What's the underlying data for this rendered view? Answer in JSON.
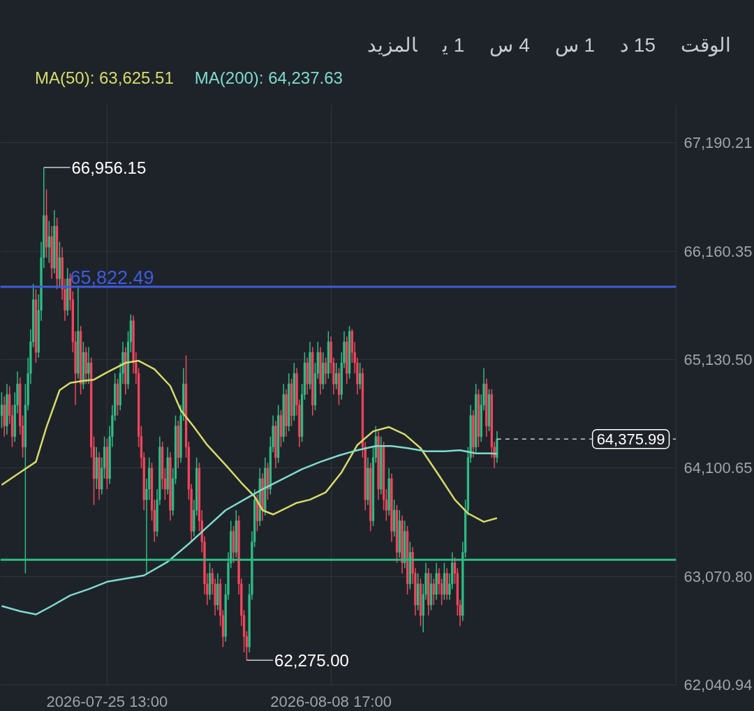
{
  "chart_data": {
    "type": "candlestick",
    "annotations": [
      "الوقت",
      "15 د",
      "1 س",
      "4 س",
      "1 ي",
      "المزيد",
      {
        "text": "66,956.15",
        "x": "2026-07-21T13:00",
        "y": 66956.15
      },
      {
        "text": "62,275.00",
        "x": "2026-08-03T09:00",
        "y": 62275
      }
    ],
    "x": [
      "2026-07-18T21:00",
      "2026-07-19T01:00",
      "2026-07-19T05:00",
      "2026-07-19T09:00",
      "2026-07-19T13:00",
      "2026-07-19T17:00",
      "2026-07-19T21:00",
      "2026-07-20T01:00",
      "2026-07-20T05:00",
      "2026-07-20T09:00",
      "2026-07-20T13:00",
      "2026-07-20T17:00",
      "2026-07-20T21:00",
      "2026-07-21T01:00",
      "2026-07-21T05:00",
      "2026-07-21T09:00",
      "2026-07-21T13:00",
      "2026-07-21T17:00",
      "2026-07-21T21:00",
      "2026-07-22T01:00",
      "2026-07-22T05:00",
      "2026-07-22T09:00",
      "2026-07-22T13:00",
      "2026-07-22T17:00",
      "2026-07-22T21:00",
      "2026-07-23T01:00",
      "2026-07-23T05:00",
      "2026-07-23T09:00",
      "2026-07-23T13:00",
      "2026-07-23T17:00",
      "2026-07-23T21:00",
      "2026-07-24T01:00",
      "2026-07-24T05:00",
      "2026-07-24T09:00",
      "2026-07-24T13:00",
      "2026-07-24T17:00",
      "2026-07-24T21:00",
      "2026-07-25T01:00",
      "2026-07-25T05:00",
      "2026-07-25T09:00",
      "2026-07-25T13:00",
      "2026-07-25T17:00",
      "2026-07-25T21:00",
      "2026-07-26T01:00",
      "2026-07-26T05:00",
      "2026-07-26T09:00",
      "2026-07-26T13:00",
      "2026-07-26T17:00",
      "2026-07-26T21:00",
      "2026-07-27T01:00",
      "2026-07-27T05:00",
      "2026-07-27T09:00",
      "2026-07-27T13:00",
      "2026-07-27T17:00",
      "2026-07-27T21:00",
      "2026-07-28T01:00",
      "2026-07-28T05:00",
      "2026-07-28T09:00",
      "2026-07-28T13:00",
      "2026-07-28T17:00",
      "2026-07-28T21:00",
      "2026-07-29T01:00",
      "2026-07-29T05:00",
      "2026-07-29T09:00",
      "2026-07-29T13:00",
      "2026-07-29T17:00",
      "2026-07-29T21:00",
      "2026-07-30T01:00",
      "2026-07-30T05:00",
      "2026-07-30T09:00",
      "2026-07-30T13:00",
      "2026-07-30T17:00",
      "2026-07-30T21:00",
      "2026-07-31T01:00",
      "2026-07-31T05:00",
      "2026-07-31T09:00",
      "2026-07-31T13:00",
      "2026-07-31T17:00",
      "2026-07-31T21:00",
      "2026-08-01T01:00",
      "2026-08-01T05:00",
      "2026-08-01T09:00",
      "2026-08-01T13:00",
      "2026-08-01T17:00",
      "2026-08-01T21:00",
      "2026-08-02T01:00",
      "2026-08-02T05:00",
      "2026-08-02T09:00",
      "2026-08-02T13:00",
      "2026-08-02T17:00",
      "2026-08-02T21:00",
      "2026-08-03T01:00",
      "2026-08-03T05:00",
      "2026-08-03T09:00",
      "2026-08-03T13:00",
      "2026-08-03T17:00",
      "2026-08-03T21:00",
      "2026-08-04T01:00",
      "2026-08-04T05:00",
      "2026-08-04T09:00",
      "2026-08-04T13:00",
      "2026-08-04T17:00",
      "2026-08-04T21:00",
      "2026-08-05T01:00",
      "2026-08-05T05:00",
      "2026-08-05T09:00",
      "2026-08-05T13:00",
      "2026-08-05T17:00",
      "2026-08-05T21:00",
      "2026-08-06T01:00",
      "2026-08-06T05:00",
      "2026-08-06T09:00",
      "2026-08-06T13:00",
      "2026-08-06T17:00",
      "2026-08-06T21:00",
      "2026-08-07T01:00",
      "2026-08-07T05:00",
      "2026-08-07T09:00",
      "2026-08-07T13:00",
      "2026-08-07T17:00",
      "2026-08-07T21:00",
      "2026-08-08T01:00",
      "2026-08-08T05:00",
      "2026-08-08T09:00",
      "2026-08-08T13:00",
      "2026-08-08T17:00",
      "2026-08-08T21:00",
      "2026-08-09T01:00",
      "2026-08-09T05:00",
      "2026-08-09T09:00",
      "2026-08-09T13:00",
      "2026-08-09T17:00",
      "2026-08-09T21:00",
      "2026-08-10T01:00",
      "2026-08-10T05:00",
      "2026-08-10T09:00",
      "2026-08-10T13:00",
      "2026-08-10T17:00",
      "2026-08-10T21:00",
      "2026-08-11T01:00",
      "2026-08-11T05:00",
      "2026-08-11T09:00",
      "2026-08-11T13:00",
      "2026-08-11T17:00",
      "2026-08-11T21:00",
      "2026-08-12T01:00",
      "2026-08-12T05:00",
      "2026-08-12T09:00",
      "2026-08-12T13:00",
      "2026-08-12T17:00",
      "2026-08-12T21:00",
      "2026-08-13T01:00",
      "2026-08-13T05:00",
      "2026-08-13T09:00",
      "2026-08-13T13:00",
      "2026-08-13T17:00",
      "2026-08-13T21:00",
      "2026-08-14T01:00",
      "2026-08-14T05:00",
      "2026-08-14T09:00",
      "2026-08-14T13:00",
      "2026-08-14T17:00",
      "2026-08-14T21:00",
      "2026-08-15T01:00",
      "2026-08-15T05:00",
      "2026-08-15T09:00",
      "2026-08-15T13:00",
      "2026-08-15T17:00",
      "2026-08-15T21:00",
      "2026-08-16T01:00",
      "2026-08-16T05:00",
      "2026-08-16T09:00",
      "2026-08-16T13:00",
      "2026-08-16T17:00",
      "2026-08-16T21:00",
      "2026-08-17T01:00",
      "2026-08-17T05:00",
      "2026-08-17T09:00",
      "2026-08-17T13:00",
      "2026-08-17T17:00",
      "2026-08-17T21:00",
      "2026-08-18T01:00",
      "2026-08-18T05:00",
      "2026-08-18T09:00",
      "2026-08-18T13:00",
      "2026-08-18T17:00",
      "2026-08-18T21:00",
      "2026-08-19T01:00",
      "2026-08-19T05:00"
    ],
    "ohlc": [
      [
        64600,
        64820,
        64480,
        64700
      ],
      [
        64700,
        64780,
        64400,
        64500
      ],
      [
        64500,
        64900,
        64420,
        64800
      ],
      [
        64800,
        64880,
        64520,
        64600
      ],
      [
        64600,
        64700,
        64300,
        64400
      ],
      [
        64400,
        64820,
        64350,
        64700
      ],
      [
        64700,
        65020,
        64620,
        64900
      ],
      [
        64900,
        64960,
        64420,
        64500
      ],
      [
        64500,
        64600,
        64200,
        64300
      ],
      [
        64300,
        64900,
        63100,
        64700
      ],
      [
        64700,
        65150,
        64650,
        65000
      ],
      [
        65000,
        65420,
        64900,
        65300
      ],
      [
        65300,
        65850,
        65250,
        65700
      ],
      [
        65700,
        65800,
        65100,
        65200
      ],
      [
        65200,
        65750,
        65150,
        65600
      ],
      [
        65600,
        66250,
        65500,
        66100
      ],
      [
        66100,
        66956.15,
        66000,
        66500
      ],
      [
        66500,
        66750,
        66100,
        66200
      ],
      [
        66200,
        66450,
        66050,
        66300
      ],
      [
        66300,
        66400,
        65900,
        66000
      ],
      [
        66000,
        66550,
        65950,
        66400
      ],
      [
        66400,
        66480,
        65800,
        65900
      ],
      [
        65900,
        66250,
        65820,
        66100
      ],
      [
        66100,
        66200,
        65700,
        65800
      ],
      [
        65800,
        65900,
        65500,
        65600
      ],
      [
        65600,
        66000,
        65550,
        65900
      ],
      [
        65900,
        65950,
        65600,
        65700
      ],
      [
        65700,
        65780,
        65200,
        65300
      ],
      [
        65300,
        65400,
        64700,
        65000
      ],
      [
        65000,
        65820,
        64950,
        65400
      ],
      [
        65400,
        65450,
        64800,
        64900
      ],
      [
        64900,
        65300,
        64850,
        65200
      ],
      [
        65200,
        65250,
        64900,
        65000
      ],
      [
        65000,
        65250,
        64900,
        65100
      ],
      [
        65100,
        65150,
        64200,
        64300
      ],
      [
        64300,
        64400,
        63750,
        64000
      ],
      [
        64000,
        64300,
        63900,
        64200
      ],
      [
        64200,
        64250,
        63800,
        63900
      ],
      [
        63900,
        64200,
        63850,
        64100
      ],
      [
        64100,
        64400,
        64000,
        64300
      ],
      [
        64300,
        64380,
        63900,
        64000
      ],
      [
        64000,
        64500,
        63950,
        64400
      ],
      [
        64400,
        64700,
        64300,
        64600
      ],
      [
        64600,
        65000,
        64550,
        64900
      ],
      [
        64900,
        64950,
        64600,
        64700
      ],
      [
        64700,
        65100,
        64650,
        65000
      ],
      [
        65000,
        65300,
        64900,
        65200
      ],
      [
        65200,
        65250,
        64800,
        64900
      ],
      [
        64900,
        65400,
        64850,
        65300
      ],
      [
        65300,
        65560,
        65200,
        65500
      ],
      [
        65500,
        65550,
        65000,
        65100
      ],
      [
        65100,
        65200,
        64900,
        65000
      ],
      [
        65000,
        65050,
        64300,
        64400
      ],
      [
        64400,
        64500,
        64100,
        64200
      ],
      [
        64200,
        64250,
        63700,
        63800
      ],
      [
        63800,
        64000,
        63100,
        63900
      ],
      [
        63900,
        64200,
        63800,
        64100
      ],
      [
        64100,
        64150,
        63600,
        63700
      ],
      [
        63700,
        63800,
        63400,
        63500
      ],
      [
        63500,
        63900,
        63450,
        63800
      ],
      [
        63800,
        64400,
        63750,
        64300
      ],
      [
        64300,
        64350,
        63900,
        64000
      ],
      [
        64000,
        64100,
        63800,
        63900
      ],
      [
        63900,
        64300,
        63850,
        64200
      ],
      [
        64200,
        64250,
        63600,
        63700
      ],
      [
        63700,
        64100,
        63650,
        64000
      ],
      [
        64000,
        64600,
        63950,
        64500
      ],
      [
        64500,
        64550,
        64100,
        64200
      ],
      [
        64200,
        64700,
        64150,
        64600
      ],
      [
        64600,
        65050,
        64550,
        64900
      ],
      [
        64900,
        65170,
        64200,
        64300
      ],
      [
        64300,
        64350,
        63800,
        63900
      ],
      [
        63900,
        63950,
        63400,
        63500
      ],
      [
        63500,
        63800,
        63450,
        63700
      ],
      [
        63700,
        64200,
        63650,
        64100
      ],
      [
        64100,
        64150,
        63500,
        63600
      ],
      [
        63600,
        63700,
        63300,
        63400
      ],
      [
        63400,
        63450,
        62900,
        63000
      ],
      [
        63000,
        63100,
        62800,
        62900
      ],
      [
        62900,
        63200,
        62850,
        63100
      ],
      [
        63100,
        63150,
        62900,
        63000
      ],
      [
        63000,
        63050,
        62700,
        62800
      ],
      [
        62800,
        63100,
        62750,
        63000
      ],
      [
        63000,
        63050,
        62600,
        62700
      ],
      [
        62700,
        62750,
        62400,
        62500
      ],
      [
        62500,
        63000,
        62450,
        62900
      ],
      [
        62900,
        63300,
        62850,
        63200
      ],
      [
        63200,
        63600,
        63150,
        63500
      ],
      [
        63500,
        63550,
        63200,
        63300
      ],
      [
        63300,
        63700,
        63250,
        63600
      ],
      [
        63600,
        63650,
        62900,
        63000
      ],
      [
        63000,
        63050,
        62600,
        62700
      ],
      [
        62700,
        62750,
        62350,
        62500
      ],
      [
        62500,
        62550,
        62275,
        62400
      ],
      [
        62400,
        63000,
        62350,
        62900
      ],
      [
        62900,
        63500,
        62850,
        63400
      ],
      [
        63400,
        63900,
        63350,
        63800
      ],
      [
        63800,
        63850,
        63500,
        63600
      ],
      [
        63600,
        64100,
        63550,
        64000
      ],
      [
        64000,
        64050,
        63600,
        63700
      ],
      [
        63700,
        64200,
        63650,
        64100
      ],
      [
        64100,
        64150,
        63800,
        63900
      ],
      [
        63900,
        64400,
        63850,
        64300
      ],
      [
        64300,
        64600,
        64250,
        64500
      ],
      [
        64500,
        64550,
        64100,
        64200
      ],
      [
        64200,
        64700,
        64150,
        64600
      ],
      [
        64600,
        64650,
        64300,
        64400
      ],
      [
        64400,
        64900,
        64350,
        64800
      ],
      [
        64800,
        64850,
        64400,
        64500
      ],
      [
        64500,
        65000,
        64450,
        64900
      ],
      [
        64900,
        64950,
        64500,
        64600
      ],
      [
        64600,
        65100,
        64550,
        65000
      ],
      [
        65000,
        65050,
        64600,
        64700
      ],
      [
        64700,
        64750,
        64300,
        64400
      ],
      [
        64400,
        64900,
        64350,
        64800
      ],
      [
        64800,
        65200,
        64750,
        65100
      ],
      [
        65100,
        65150,
        64800,
        64900
      ],
      [
        64900,
        65300,
        64850,
        65200
      ],
      [
        65200,
        65250,
        64600,
        64700
      ],
      [
        64700,
        65100,
        64650,
        65000
      ],
      [
        65000,
        65300,
        64950,
        65200
      ],
      [
        65200,
        65250,
        64800,
        64900
      ],
      [
        64900,
        65200,
        64850,
        65100
      ],
      [
        65100,
        65150,
        64900,
        65000
      ],
      [
        65000,
        65400,
        64950,
        65300
      ],
      [
        65300,
        65350,
        65000,
        65100
      ],
      [
        65100,
        65150,
        64800,
        64900
      ],
      [
        64900,
        65100,
        64850,
        65000
      ],
      [
        65000,
        65050,
        64700,
        64800
      ],
      [
        64800,
        65200,
        64750,
        65100
      ],
      [
        65100,
        65400,
        65050,
        65300
      ],
      [
        65300,
        65350,
        64900,
        65000
      ],
      [
        65000,
        65450,
        64950,
        65400
      ],
      [
        65400,
        65420,
        65100,
        65200
      ],
      [
        65200,
        65300,
        65000,
        65100
      ],
      [
        65100,
        65150,
        64800,
        64900
      ],
      [
        64900,
        65100,
        64850,
        65000
      ],
      [
        65000,
        65050,
        64200,
        64300
      ],
      [
        64300,
        64350,
        63700,
        63800
      ],
      [
        63800,
        64200,
        63750,
        64100
      ],
      [
        64100,
        64150,
        63500,
        63600
      ],
      [
        63600,
        64300,
        63550,
        64200
      ],
      [
        64200,
        64500,
        64150,
        64400
      ],
      [
        64400,
        64450,
        63800,
        63900
      ],
      [
        63900,
        64400,
        63850,
        64300
      ],
      [
        64300,
        64350,
        63700,
        63800
      ],
      [
        63800,
        63900,
        63600,
        63700
      ],
      [
        63700,
        64100,
        63650,
        64000
      ],
      [
        64000,
        64050,
        63400,
        63500
      ],
      [
        63500,
        63800,
        63450,
        63700
      ],
      [
        63700,
        63750,
        63200,
        63300
      ],
      [
        63300,
        63700,
        63250,
        63600
      ],
      [
        63600,
        63650,
        63100,
        63200
      ],
      [
        63200,
        63600,
        63150,
        63500
      ],
      [
        63500,
        63550,
        62900,
        63000
      ],
      [
        63000,
        63400,
        62950,
        63300
      ],
      [
        63300,
        63350,
        63000,
        63100
      ],
      [
        63100,
        63150,
        62700,
        62800
      ],
      [
        62800,
        63100,
        62750,
        63000
      ],
      [
        63000,
        63050,
        62600,
        62700
      ],
      [
        62700,
        63000,
        62540,
        62900
      ],
      [
        62900,
        63200,
        62850,
        63100
      ],
      [
        63100,
        63150,
        62700,
        62800
      ],
      [
        62800,
        63100,
        62750,
        63000
      ],
      [
        63000,
        63050,
        62800,
        62900
      ],
      [
        62900,
        63200,
        62850,
        63100
      ],
      [
        63100,
        63150,
        62900,
        63000
      ],
      [
        63000,
        63050,
        62800,
        62900
      ],
      [
        62900,
        63200,
        62850,
        63100
      ],
      [
        63100,
        63150,
        62850,
        62900
      ],
      [
        62900,
        63100,
        62850,
        63000
      ],
      [
        63000,
        63300,
        62950,
        63200
      ],
      [
        63200,
        63250,
        63000,
        63100
      ],
      [
        63100,
        63150,
        62700,
        62800
      ],
      [
        62800,
        62850,
        62600,
        62700
      ],
      [
        62700,
        63400,
        62650,
        63300
      ],
      [
        63300,
        63800,
        63250,
        63700
      ],
      [
        63700,
        64300,
        63650,
        64200
      ],
      [
        64200,
        64700,
        64150,
        64600
      ],
      [
        64600,
        64650,
        64200,
        64300
      ],
      [
        64300,
        64900,
        64250,
        64800
      ],
      [
        64800,
        64850,
        64300,
        64400
      ],
      [
        64400,
        64800,
        64350,
        64700
      ],
      [
        64700,
        65050,
        64650,
        64900
      ],
      [
        64900,
        64950,
        64400,
        64500
      ],
      [
        64500,
        64850,
        64450,
        64800
      ],
      [
        64800,
        64850,
        64200,
        64300
      ],
      [
        64300,
        64350,
        64100,
        64200
      ],
      [
        64200,
        64450,
        64150,
        64375.99
      ]
    ],
    "series": [
      {
        "name": "MA(50): 63,625.51",
        "type": "line",
        "color": "#d6dc6a",
        "x": [
          "2026-07-18T21:00",
          "2026-07-20T01:00",
          "2026-07-21T01:00",
          "2026-07-21T17:00",
          "2026-07-22T13:00",
          "2026-07-23T05:00",
          "2026-07-24T01:00",
          "2026-07-24T17:00",
          "2026-07-25T13:00",
          "2026-07-26T17:00",
          "2026-07-27T13:00",
          "2026-07-28T13:00",
          "2026-07-29T13:00",
          "2026-07-30T05:00",
          "2026-07-31T01:00",
          "2026-07-31T21:00",
          "2026-08-02T01:00",
          "2026-08-03T01:00",
          "2026-08-03T21:00",
          "2026-08-04T09:00",
          "2026-08-05T01:00",
          "2026-08-05T21:00",
          "2026-08-06T13:00",
          "2026-08-07T09:00",
          "2026-08-08T09:00",
          "2026-08-09T09:00",
          "2026-08-10T09:00",
          "2026-08-11T09:00",
          "2026-08-12T09:00",
          "2026-08-13T09:00",
          "2026-08-14T09:00",
          "2026-08-15T13:00",
          "2026-08-16T13:00",
          "2026-08-17T09:00",
          "2026-08-18T09:00",
          "2026-08-19T05:00"
        ],
        "values": [
          63940,
          64060,
          64160,
          64490,
          64840,
          64910,
          64930,
          64940,
          65010,
          65100,
          65120,
          65040,
          64880,
          64650,
          64490,
          64320,
          64130,
          63960,
          63830,
          63700,
          63660,
          63720,
          63770,
          63800,
          63870,
          64060,
          64320,
          64450,
          64490,
          64420,
          64290,
          64030,
          63800,
          63670,
          63590,
          63625.51
        ]
      },
      {
        "name": "MA(200): 64,237.63",
        "type": "line",
        "color": "#7fdccb",
        "x": [
          "2026-07-18T21:00",
          "2026-07-20T01:00",
          "2026-07-21T01:00",
          "2026-07-22T01:00",
          "2026-07-23T05:00",
          "2026-07-24T09:00",
          "2026-07-25T13:00",
          "2026-07-26T17:00",
          "2026-07-27T21:00",
          "2026-07-29T09:00",
          "2026-07-30T17:00",
          "2026-07-31T21:00",
          "2026-08-02T01:00",
          "2026-08-03T05:00",
          "2026-08-04T09:00",
          "2026-08-05T17:00",
          "2026-08-06T21:00",
          "2026-08-08T01:00",
          "2026-08-09T05:00",
          "2026-08-10T09:00",
          "2026-08-11T13:00",
          "2026-08-12T13:00",
          "2026-08-13T13:00",
          "2026-08-14T17:00",
          "2026-08-15T21:00",
          "2026-08-16T21:00",
          "2026-08-17T21:00",
          "2026-08-18T17:00",
          "2026-08-19T05:00"
        ],
        "values": [
          62790,
          62740,
          62710,
          62790,
          62890,
          62950,
          63020,
          63050,
          63080,
          63210,
          63380,
          63540,
          63700,
          63800,
          63900,
          64000,
          64090,
          64160,
          64220,
          64270,
          64310,
          64310,
          64290,
          64260,
          64260,
          64270,
          64240,
          64240,
          64237.63
        ]
      }
    ],
    "ref_lines": [
      {
        "axis": "y",
        "value": 65822.49,
        "label": "65,822.49",
        "color": "#3d5ce0"
      },
      {
        "axis": "y",
        "value": 63230,
        "color": "#2ebd85"
      },
      {
        "axis": "y",
        "value": 64375.99,
        "label": "64,375.99",
        "color": "#c8ccd0",
        "line_style": "dashed"
      }
    ],
    "xlim": [
      "2026-07-18T19:00",
      "2026-08-30T13:00"
    ],
    "xticks": [
      {
        "value": "2026-07-25T13:00",
        "label": "2026-07-25 13:00"
      },
      {
        "value": "2026-08-08T17:00",
        "label": "2026-08-08 17:00"
      }
    ],
    "ylim": [
      62040.94,
      67550
    ],
    "yticks": [
      {
        "value": 62040.94,
        "label": "62,040.94"
      },
      {
        "value": 63070.8,
        "label": "63,070.80"
      },
      {
        "value": 64100.65,
        "label": "64,100.65"
      },
      {
        "value": 65130.5,
        "label": "65,130.50"
      },
      {
        "value": 66160.35,
        "label": "66,160.35"
      },
      {
        "value": 67190.21,
        "label": "67,190.21"
      }
    ],
    "grid": true,
    "legend": "top left"
  }
}
